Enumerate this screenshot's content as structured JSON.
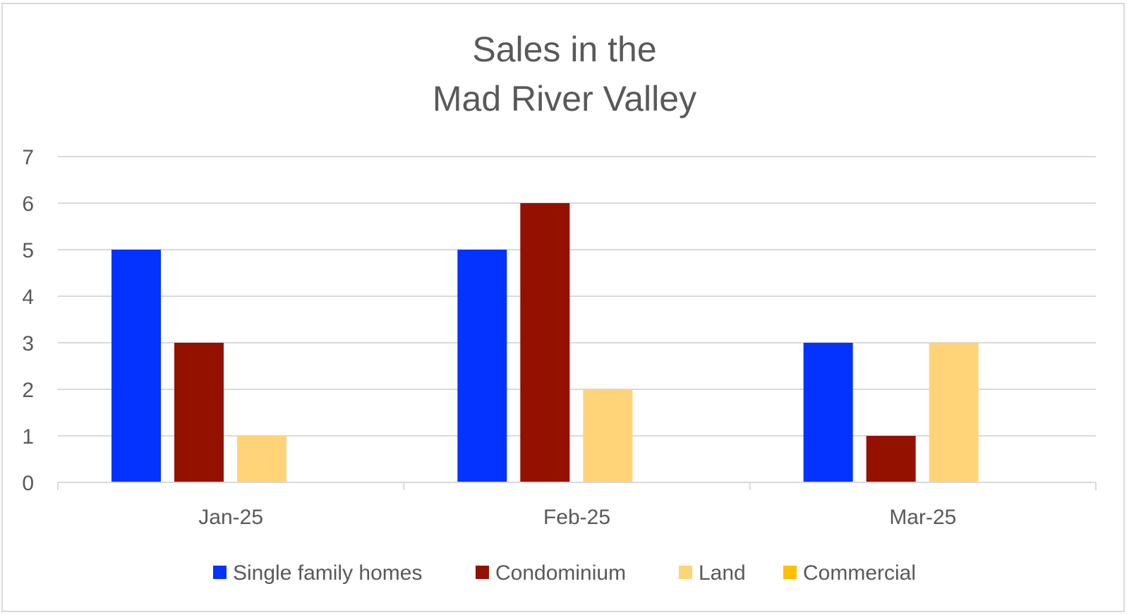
{
  "chart_data": {
    "type": "bar",
    "title_lines": [
      "Sales in the",
      "Mad River Valley"
    ],
    "categories": [
      "Jan-25",
      "Feb-25",
      "Mar-25"
    ],
    "series": [
      {
        "name": "Single family homes",
        "color": "#0433ff",
        "values": [
          5,
          5,
          3
        ]
      },
      {
        "name": "Condominium",
        "color": "#941100",
        "values": [
          3,
          6,
          1
        ]
      },
      {
        "name": "Land",
        "color": "#ffd479",
        "values": [
          1,
          2,
          3
        ]
      },
      {
        "name": "Commercial",
        "color": "#ffc000",
        "values": [
          0,
          0,
          0
        ]
      }
    ],
    "ylim": [
      0,
      7
    ],
    "yticks": [
      "0",
      "1",
      "2",
      "3",
      "4",
      "5",
      "6",
      "7"
    ],
    "grid": true,
    "legend_position": "bottom"
  }
}
